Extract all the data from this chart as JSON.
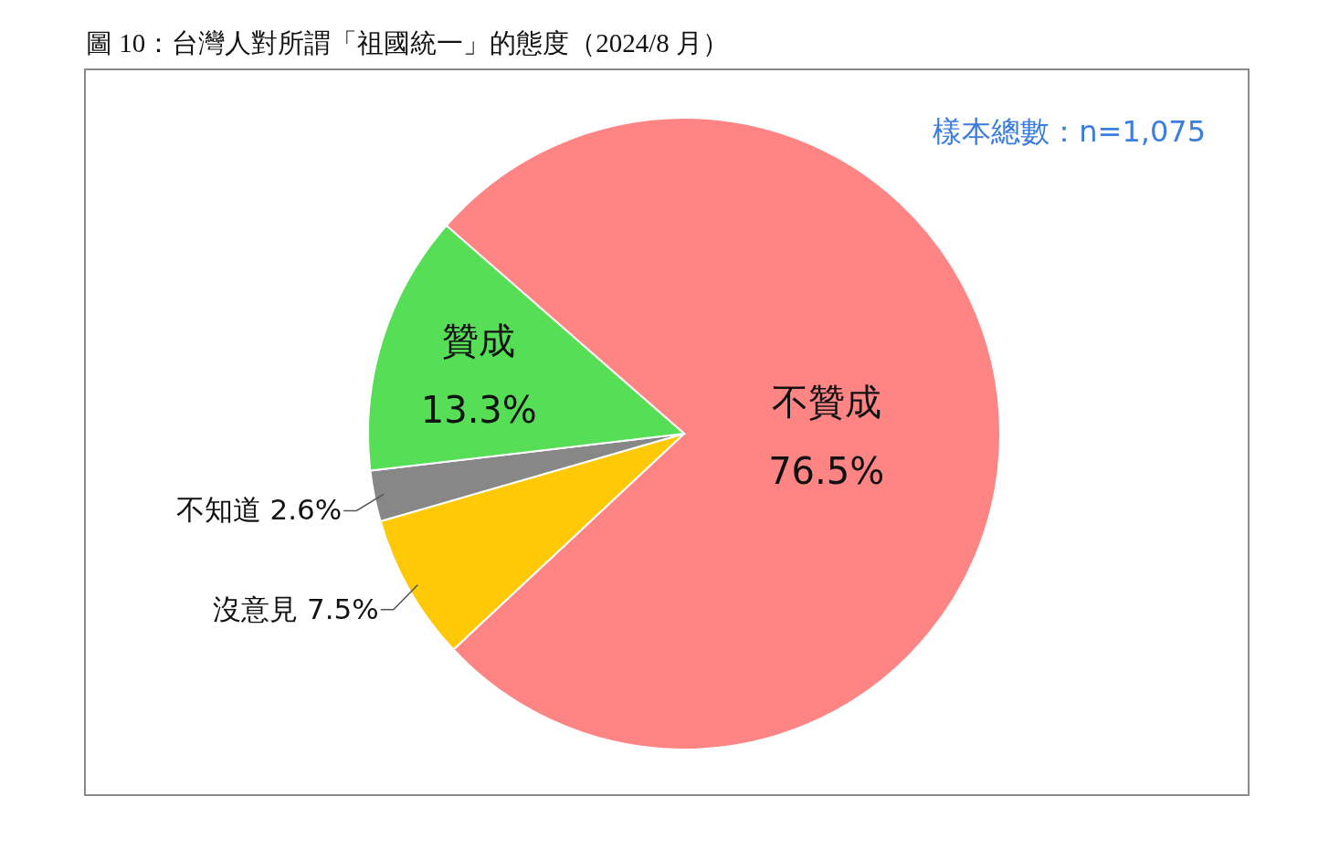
{
  "chart_data": {
    "type": "pie",
    "title": "圖 10：台灣人對所謂「祖國統一」的態度（2024/8 月）",
    "categories": [
      "不贊成",
      "沒意見",
      "不知道",
      "贊成"
    ],
    "values": [
      76.5,
      7.5,
      2.6,
      13.3
    ],
    "colors": [
      "#ff8585",
      "#ffc905",
      "#878787",
      "#56df56"
    ],
    "value_labels": [
      "76.5%",
      "7.5%",
      "2.6%",
      "13.3%"
    ],
    "annotations": [
      "樣本總數：n=1,075"
    ],
    "legend": false
  }
}
